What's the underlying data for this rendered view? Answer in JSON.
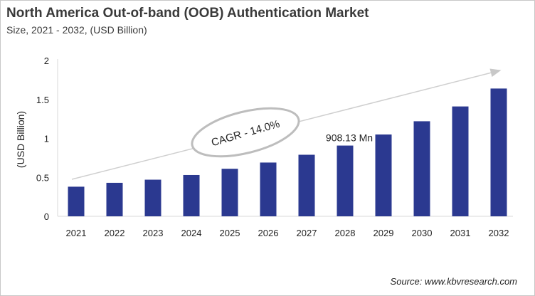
{
  "chart_data": {
    "type": "bar",
    "title": "North America Out-of-band (OOB) Authentication Market",
    "subtitle": "Size, 2021 - 2032, (USD Billion)",
    "ylabel": "(USD Billion)",
    "xlabel": "",
    "categories": [
      "2021",
      "2022",
      "2023",
      "2024",
      "2025",
      "2026",
      "2027",
      "2028",
      "2029",
      "2030",
      "2031",
      "2032"
    ],
    "values": [
      0.38,
      0.43,
      0.47,
      0.53,
      0.61,
      0.69,
      0.79,
      0.908,
      1.05,
      1.22,
      1.41,
      1.64
    ],
    "ylim": [
      0,
      2
    ],
    "yticks": [
      "0",
      "0.5",
      "1",
      "1.5",
      "2"
    ],
    "bar_color": "#2b3990",
    "grid": false,
    "annotations": {
      "cagr": "CAGR - 14.0%",
      "data_label": "908.13 Mn",
      "data_label_year": "2028"
    },
    "source": "Source: www.kbvresearch.com"
  }
}
